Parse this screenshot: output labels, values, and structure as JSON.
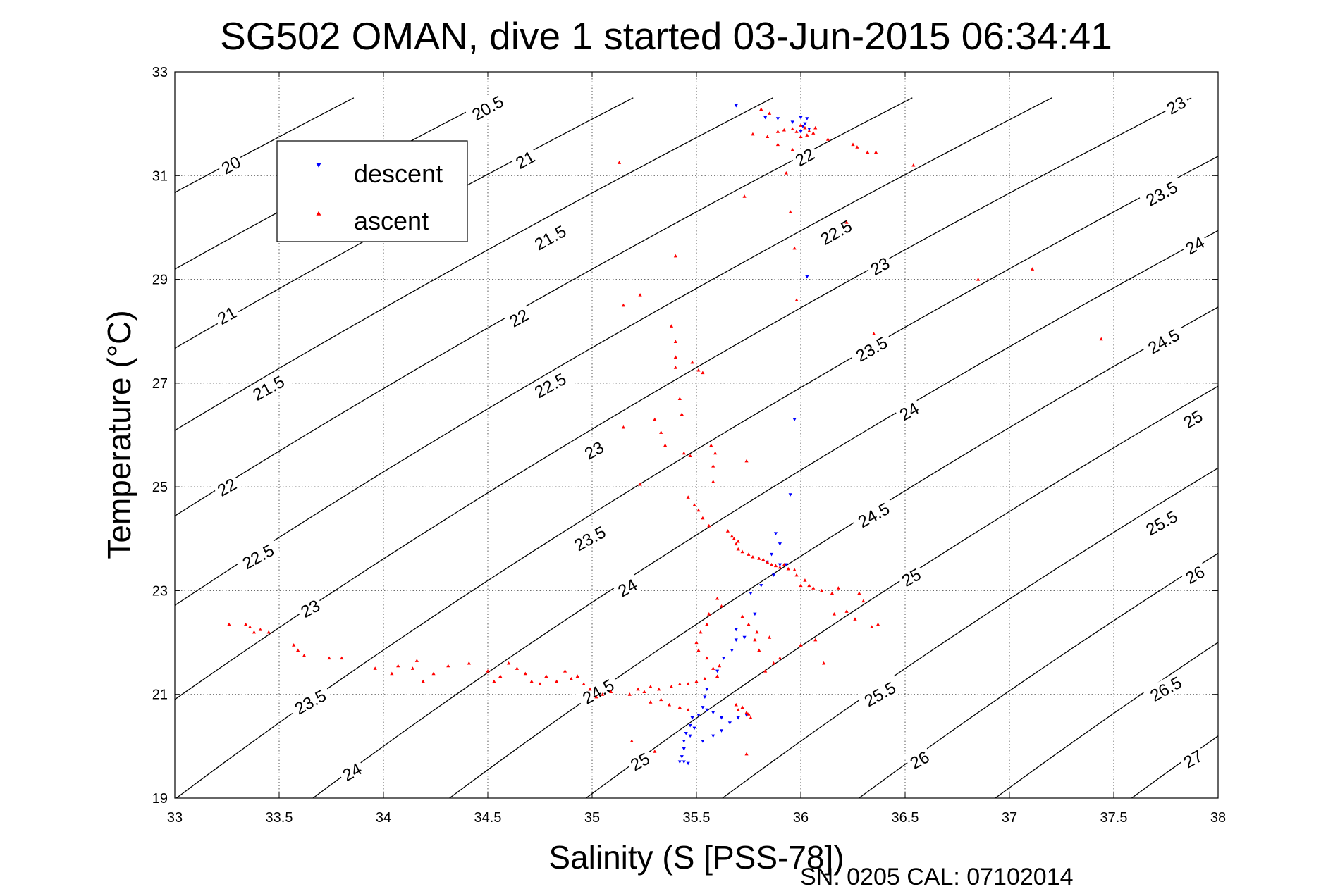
{
  "chart_data": {
    "type": "scatter",
    "title": "SG502 OMAN, dive 1 started 03-Jun-2015 06:34:41",
    "xlabel": "Salinity (S [PSS-78])",
    "ylabel": "Temperature (°C)",
    "footer": "SN: 0205  CAL: 07102014",
    "xlim": [
      33,
      38
    ],
    "ylim": [
      19,
      33
    ],
    "xticks": [
      33,
      33.5,
      34,
      34.5,
      35,
      35.5,
      36,
      36.5,
      37,
      37.5,
      38
    ],
    "yticks": [
      19,
      21,
      23,
      25,
      27,
      29,
      31,
      33
    ],
    "xtick_labels": [
      "33",
      "33.5",
      "34",
      "34.5",
      "35",
      "35.5",
      "36",
      "36.5",
      "37",
      "37.5",
      "38"
    ],
    "ytick_labels": [
      "19",
      "21",
      "23",
      "25",
      "27",
      "29",
      "31",
      "33"
    ],
    "grid": true,
    "legend_position": "top-left",
    "contours": {
      "variable": "sigma-t",
      "color": "#000000",
      "levels": [
        20,
        20.5,
        21,
        21.5,
        22,
        22.5,
        23,
        23.5,
        24,
        24.5,
        25,
        25.5,
        26,
        26.5,
        27
      ],
      "labels": [
        {
          "text": "20",
          "s": 33.27,
          "t": 31.2
        },
        {
          "text": "20.5",
          "s": 34.5,
          "t": 32.3
        },
        {
          "text": "21",
          "s": 33.25,
          "t": 28.3
        },
        {
          "text": "21",
          "s": 34.68,
          "t": 31.3
        },
        {
          "text": "21.5",
          "s": 33.45,
          "t": 26.9
        },
        {
          "text": "21.5",
          "s": 34.8,
          "t": 29.8
        },
        {
          "text": "22",
          "s": 33.25,
          "t": 24.99
        },
        {
          "text": "22",
          "s": 34.65,
          "t": 28.25
        },
        {
          "text": "22",
          "s": 36.02,
          "t": 31.35
        },
        {
          "text": "22.5",
          "s": 33.4,
          "t": 23.65
        },
        {
          "text": "22.5",
          "s": 34.8,
          "t": 26.95
        },
        {
          "text": "22.5",
          "s": 36.17,
          "t": 29.9
        },
        {
          "text": "23",
          "s": 33.65,
          "t": 22.65
        },
        {
          "text": "23",
          "s": 35.01,
          "t": 25.7
        },
        {
          "text": "23",
          "s": 36.38,
          "t": 29.25
        },
        {
          "text": "23",
          "s": 37.8,
          "t": 32.35
        },
        {
          "text": "23.5",
          "s": 33.65,
          "t": 20.85
        },
        {
          "text": "23.5",
          "s": 34.99,
          "t": 24.0
        },
        {
          "text": "23.5",
          "s": 36.34,
          "t": 27.65
        },
        {
          "text": "23.5",
          "s": 37.73,
          "t": 30.65
        },
        {
          "text": "24",
          "s": 33.85,
          "t": 19.5
        },
        {
          "text": "24",
          "s": 35.17,
          "t": 23.05
        },
        {
          "text": "24",
          "s": 36.52,
          "t": 26.45
        },
        {
          "text": "24",
          "s": 37.89,
          "t": 29.65
        },
        {
          "text": "24.5",
          "s": 35.03,
          "t": 21.05
        },
        {
          "text": "24.5",
          "s": 36.35,
          "t": 24.45
        },
        {
          "text": "24.5",
          "s": 37.74,
          "t": 27.8
        },
        {
          "text": "25",
          "s": 35.23,
          "t": 19.7
        },
        {
          "text": "25",
          "s": 36.53,
          "t": 23.25
        },
        {
          "text": "25",
          "s": 37.88,
          "t": 26.3
        },
        {
          "text": "25.5",
          "s": 36.38,
          "t": 21.0
        },
        {
          "text": "25.5",
          "s": 37.73,
          "t": 24.3
        },
        {
          "text": "26",
          "s": 36.57,
          "t": 19.73
        },
        {
          "text": "26",
          "s": 37.89,
          "t": 23.3
        },
        {
          "text": "26.5",
          "s": 37.75,
          "t": 21.1
        },
        {
          "text": "27",
          "s": 37.88,
          "t": 19.75
        }
      ]
    },
    "legend": [
      {
        "label": "descent",
        "color": "#0000ff",
        "marker": "down-triangle"
      },
      {
        "label": "ascent",
        "color": "#ff0000",
        "marker": "up-triangle"
      }
    ],
    "series": [
      {
        "name": "descent",
        "color": "#0000ff",
        "marker": "down-triangle",
        "points": [
          [
            35.69,
            32.35
          ],
          [
            35.83,
            32.12
          ],
          [
            35.89,
            32.1
          ],
          [
            35.96,
            32.03
          ],
          [
            36.0,
            32.12
          ],
          [
            36.03,
            32.1
          ],
          [
            36.02,
            32.0
          ],
          [
            36.01,
            31.95
          ],
          [
            36.04,
            31.9
          ],
          [
            36.0,
            31.85
          ],
          [
            36.03,
            29.05
          ],
          [
            35.97,
            26.3
          ],
          [
            35.95,
            24.85
          ],
          [
            35.88,
            24.1
          ],
          [
            35.9,
            23.9
          ],
          [
            35.86,
            23.7
          ],
          [
            35.84,
            23.55
          ],
          [
            35.9,
            23.5
          ],
          [
            35.93,
            23.5
          ],
          [
            35.87,
            23.3
          ],
          [
            35.81,
            23.1
          ],
          [
            35.76,
            22.95
          ],
          [
            35.78,
            22.55
          ],
          [
            35.69,
            22.25
          ],
          [
            35.73,
            22.1
          ],
          [
            35.69,
            22.05
          ],
          [
            35.67,
            21.85
          ],
          [
            35.63,
            21.7
          ],
          [
            35.6,
            21.45
          ],
          [
            35.55,
            21.1
          ],
          [
            35.54,
            20.95
          ],
          [
            35.53,
            20.75
          ],
          [
            35.55,
            20.7
          ],
          [
            35.51,
            20.6
          ],
          [
            35.48,
            20.55
          ],
          [
            35.47,
            20.4
          ],
          [
            35.45,
            20.25
          ],
          [
            35.44,
            20.1
          ],
          [
            35.44,
            19.95
          ],
          [
            35.43,
            19.8
          ],
          [
            35.42,
            19.7
          ],
          [
            35.44,
            19.7
          ],
          [
            35.46,
            19.67
          ],
          [
            35.47,
            20.2
          ],
          [
            35.49,
            20.35
          ],
          [
            35.53,
            20.1
          ],
          [
            35.58,
            20.2
          ],
          [
            35.62,
            20.3
          ],
          [
            35.66,
            20.45
          ],
          [
            35.7,
            20.55
          ],
          [
            35.74,
            20.6
          ],
          [
            35.58,
            20.65
          ],
          [
            35.62,
            20.55
          ]
        ]
      },
      {
        "name": "ascent",
        "color": "#ff0000",
        "marker": "up-triangle",
        "points": [
          [
            35.81,
            32.28
          ],
          [
            35.85,
            32.2
          ],
          [
            35.92,
            31.88
          ],
          [
            35.89,
            31.85
          ],
          [
            35.96,
            31.9
          ],
          [
            36.0,
            31.97
          ],
          [
            36.02,
            31.92
          ],
          [
            36.04,
            31.86
          ],
          [
            36.06,
            31.82
          ],
          [
            36.03,
            31.78
          ],
          [
            35.98,
            31.85
          ],
          [
            36.07,
            31.92
          ],
          [
            35.77,
            31.8
          ],
          [
            35.84,
            31.75
          ],
          [
            35.89,
            31.6
          ],
          [
            35.96,
            31.5
          ],
          [
            36.0,
            31.75
          ],
          [
            36.13,
            31.7
          ],
          [
            36.25,
            31.6
          ],
          [
            36.27,
            31.55
          ],
          [
            36.32,
            31.45
          ],
          [
            36.36,
            31.45
          ],
          [
            35.93,
            31.05
          ],
          [
            36.54,
            31.2
          ],
          [
            35.13,
            31.25
          ],
          [
            35.73,
            30.6
          ],
          [
            35.95,
            30.3
          ],
          [
            36.22,
            30.1
          ],
          [
            35.97,
            29.6
          ],
          [
            35.98,
            28.6
          ],
          [
            36.85,
            29.0
          ],
          [
            37.11,
            29.2
          ],
          [
            37.44,
            27.85
          ],
          [
            36.35,
            27.95
          ],
          [
            35.4,
            29.45
          ],
          [
            35.15,
            28.5
          ],
          [
            35.23,
            28.7
          ],
          [
            35.38,
            28.1
          ],
          [
            35.4,
            27.8
          ],
          [
            35.4,
            27.5
          ],
          [
            35.4,
            27.3
          ],
          [
            35.48,
            27.4
          ],
          [
            35.51,
            27.25
          ],
          [
            35.53,
            27.2
          ],
          [
            35.42,
            26.7
          ],
          [
            35.43,
            26.4
          ],
          [
            35.15,
            26.15
          ],
          [
            35.3,
            26.3
          ],
          [
            35.33,
            26.05
          ],
          [
            35.35,
            25.8
          ],
          [
            35.44,
            25.65
          ],
          [
            35.47,
            25.6
          ],
          [
            35.57,
            25.8
          ],
          [
            35.59,
            25.65
          ],
          [
            35.58,
            25.4
          ],
          [
            35.74,
            25.5
          ],
          [
            35.58,
            25.1
          ],
          [
            35.23,
            25.05
          ],
          [
            35.46,
            24.8
          ],
          [
            35.49,
            24.65
          ],
          [
            35.51,
            24.55
          ],
          [
            35.53,
            24.4
          ],
          [
            35.56,
            24.25
          ],
          [
            35.65,
            24.15
          ],
          [
            35.67,
            24.05
          ],
          [
            35.68,
            24.0
          ],
          [
            35.7,
            23.95
          ],
          [
            35.69,
            23.9
          ],
          [
            35.7,
            23.8
          ],
          [
            35.72,
            23.75
          ],
          [
            35.75,
            23.7
          ],
          [
            35.77,
            23.65
          ],
          [
            35.8,
            23.62
          ],
          [
            35.82,
            23.6
          ],
          [
            35.84,
            23.55
          ],
          [
            35.86,
            23.5
          ],
          [
            35.88,
            23.48
          ],
          [
            35.9,
            23.45
          ],
          [
            35.92,
            23.5
          ],
          [
            35.94,
            23.42
          ],
          [
            35.97,
            23.4
          ],
          [
            35.98,
            23.3
          ],
          [
            36.02,
            23.2
          ],
          [
            36.0,
            23.1
          ],
          [
            36.04,
            23.1
          ],
          [
            36.06,
            23.05
          ],
          [
            36.1,
            23.0
          ],
          [
            36.15,
            22.95
          ],
          [
            36.18,
            23.05
          ],
          [
            36.28,
            22.95
          ],
          [
            36.3,
            22.8
          ],
          [
            36.22,
            22.6
          ],
          [
            36.16,
            22.55
          ],
          [
            36.37,
            22.35
          ],
          [
            36.34,
            22.3
          ],
          [
            36.26,
            22.45
          ],
          [
            36.07,
            22.05
          ],
          [
            36.0,
            21.95
          ],
          [
            36.11,
            21.6
          ],
          [
            35.85,
            22.1
          ],
          [
            35.79,
            22.2
          ],
          [
            35.75,
            22.35
          ],
          [
            35.72,
            22.5
          ],
          [
            35.62,
            22.7
          ],
          [
            35.6,
            22.85
          ],
          [
            35.56,
            22.55
          ],
          [
            35.55,
            22.35
          ],
          [
            35.52,
            22.2
          ],
          [
            35.5,
            22.0
          ],
          [
            35.51,
            21.85
          ],
          [
            35.55,
            21.7
          ],
          [
            35.58,
            21.5
          ],
          [
            35.6,
            21.35
          ],
          [
            35.54,
            21.3
          ],
          [
            35.5,
            21.25
          ],
          [
            35.46,
            21.2
          ],
          [
            35.42,
            21.2
          ],
          [
            35.38,
            21.15
          ],
          [
            35.32,
            21.1
          ],
          [
            35.28,
            21.15
          ],
          [
            35.25,
            21.05
          ],
          [
            35.22,
            21.1
          ],
          [
            35.18,
            21.0
          ],
          [
            35.09,
            21.05
          ],
          [
            35.05,
            21.0
          ],
          [
            35.02,
            20.95
          ],
          [
            34.99,
            21.1
          ],
          [
            34.96,
            21.2
          ],
          [
            34.93,
            21.35
          ],
          [
            34.9,
            21.3
          ],
          [
            34.87,
            21.45
          ],
          [
            34.83,
            21.25
          ],
          [
            34.78,
            21.35
          ],
          [
            34.75,
            21.2
          ],
          [
            34.71,
            21.25
          ],
          [
            34.68,
            21.4
          ],
          [
            34.64,
            21.5
          ],
          [
            34.6,
            21.6
          ],
          [
            34.56,
            21.35
          ],
          [
            34.53,
            21.25
          ],
          [
            34.5,
            21.45
          ],
          [
            34.41,
            21.6
          ],
          [
            34.31,
            21.55
          ],
          [
            34.24,
            21.4
          ],
          [
            34.19,
            21.25
          ],
          [
            34.16,
            21.65
          ],
          [
            34.14,
            21.5
          ],
          [
            34.07,
            21.55
          ],
          [
            34.04,
            21.4
          ],
          [
            33.96,
            21.5
          ],
          [
            33.8,
            21.7
          ],
          [
            33.74,
            21.7
          ],
          [
            33.62,
            21.75
          ],
          [
            33.59,
            21.85
          ],
          [
            33.57,
            21.95
          ],
          [
            33.45,
            22.2
          ],
          [
            33.41,
            22.25
          ],
          [
            33.38,
            22.2
          ],
          [
            33.36,
            22.3
          ],
          [
            33.34,
            22.35
          ],
          [
            33.26,
            22.35
          ],
          [
            35.28,
            20.85
          ],
          [
            35.33,
            20.9
          ],
          [
            35.37,
            20.8
          ],
          [
            35.42,
            20.75
          ],
          [
            35.46,
            20.7
          ],
          [
            35.19,
            20.1
          ],
          [
            35.3,
            19.9
          ],
          [
            35.72,
            20.75
          ],
          [
            35.74,
            20.65
          ],
          [
            35.75,
            20.62
          ],
          [
            35.7,
            20.7
          ],
          [
            35.69,
            20.8
          ],
          [
            35.76,
            20.55
          ],
          [
            35.74,
            19.85
          ],
          [
            35.61,
            21.55
          ],
          [
            35.83,
            21.45
          ],
          [
            35.87,
            21.6
          ],
          [
            35.9,
            21.7
          ],
          [
            35.8,
            21.85
          ],
          [
            35.78,
            22.05
          ]
        ]
      }
    ]
  }
}
